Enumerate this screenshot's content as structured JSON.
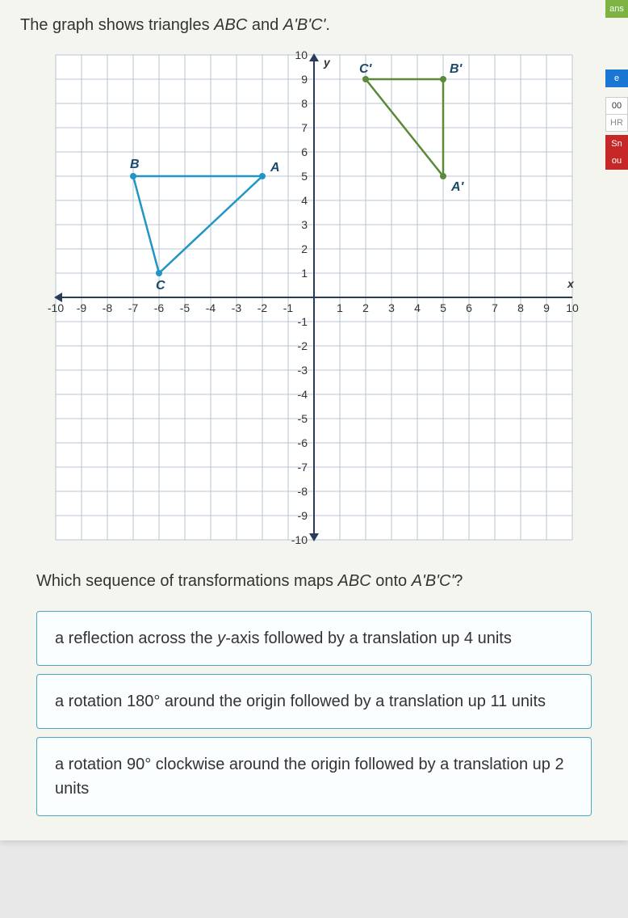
{
  "prompt_pre": "The graph shows triangles ",
  "prompt_i1": "ABC",
  "prompt_mid": " and ",
  "prompt_i2": "A'B'C'",
  "prompt_post": ".",
  "question_pre": "Which sequence of transformations maps ",
  "question_i1": "ABC",
  "question_mid": " onto ",
  "question_i2": "A'B'C'",
  "question_post": "?",
  "answers": {
    "a1_pre": "a reflection across the ",
    "a1_i": "y",
    "a1_post": "-axis followed by a translation up 4 units",
    "a2": "a rotation 180° around the origin followed by a translation up 11 units",
    "a3": "a rotation 90° clockwise around the origin followed by a translation up 2 units"
  },
  "sidebar": {
    "ans": "ans",
    "e": "e",
    "hr1": "00",
    "hr2": "HR",
    "sn": "Sn",
    "ou": "ou"
  },
  "chart": {
    "xlim": [
      -10,
      10
    ],
    "ylim": [
      -10,
      10
    ],
    "tick_step": 1,
    "axis_labels": {
      "x": "x",
      "y": "y"
    },
    "grid_color": "#b8c4d4",
    "axis_color": "#2a3a5a",
    "bg_color": "#ffffff",
    "x_ticks_shown": [
      -10,
      -9,
      -8,
      -7,
      -6,
      -5,
      -4,
      -3,
      -2,
      -1,
      1,
      2,
      3,
      4,
      5,
      6,
      7,
      8,
      9,
      10
    ],
    "y_ticks_shown": [
      10,
      9,
      8,
      7,
      6,
      5,
      4,
      3,
      2,
      1,
      -1,
      -2,
      -3,
      -4,
      -5,
      -6,
      -7,
      -8,
      -9,
      -10
    ],
    "triangleABC": {
      "color": "#2196c4",
      "fill": "none",
      "points": {
        "A": [
          -2,
          5
        ],
        "B": [
          -7,
          5
        ],
        "C": [
          -6,
          1
        ]
      },
      "label_color": "#1a4a6a"
    },
    "triangleA1B1C1": {
      "color": "#5a8a3a",
      "fill": "none",
      "points": {
        "A'": [
          5,
          5
        ],
        "B'": [
          5,
          9
        ],
        "C'": [
          2,
          9
        ]
      },
      "label_color": "#1a4a6a"
    },
    "tick_font_size": 14,
    "label_font_size": 14,
    "point_radius": 4
  }
}
